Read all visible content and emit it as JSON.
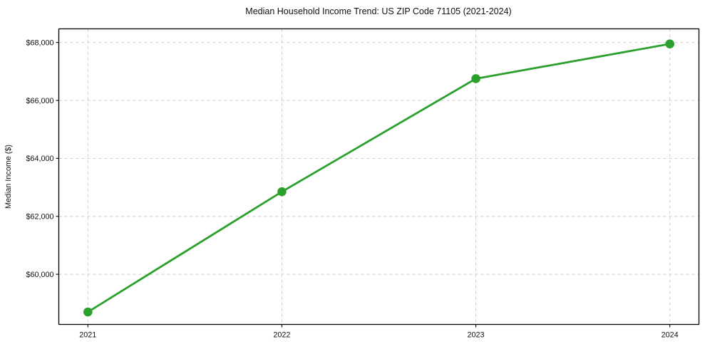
{
  "chart_data": {
    "type": "line",
    "title": "Median Household Income Trend: US ZIP Code 71105 (2021-2024)",
    "xlabel": "",
    "ylabel": "Median Income ($)",
    "x": [
      2021,
      2022,
      2023,
      2024
    ],
    "x_tick_labels": [
      "2021",
      "2022",
      "2023",
      "2024"
    ],
    "y_ticks": [
      60000,
      62000,
      64000,
      66000,
      68000
    ],
    "y_tick_labels": [
      "$60,000",
      "$62,000",
      "$64,000",
      "$66,000",
      "$68,000"
    ],
    "series": [
      {
        "name": "Median Household Income",
        "values": [
          58700,
          62850,
          66750,
          67950
        ]
      }
    ],
    "xlim": [
      2020.85,
      2024.15
    ],
    "ylim": [
      58270,
      68470
    ],
    "grid": "dashed",
    "legend": "none",
    "line_color": "#2ca02c",
    "grid_color": "#cccccc",
    "spine_color": "#000000",
    "marker": "circle"
  }
}
